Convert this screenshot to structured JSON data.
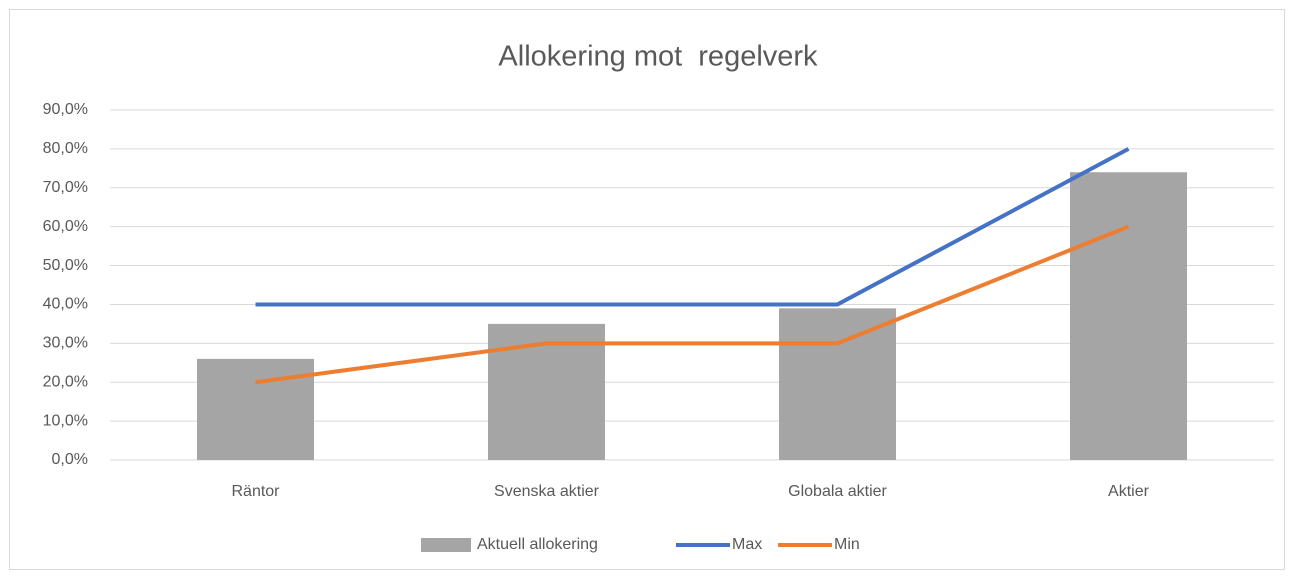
{
  "chart_data": {
    "type": "bar",
    "title": "Allokering mot  regelverk",
    "categories": [
      "Räntor",
      "Svenska aktier",
      "Globala aktier",
      "Aktier"
    ],
    "series": [
      {
        "name": "Aktuell allokering",
        "type": "bar",
        "color": "#a5a5a5",
        "values": [
          26,
          35,
          39,
          74
        ]
      },
      {
        "name": "Max",
        "type": "line",
        "color": "#4472c4",
        "values": [
          40,
          40,
          40,
          80
        ]
      },
      {
        "name": "Min",
        "type": "line",
        "color": "#ed7d31",
        "values": [
          20,
          30,
          30,
          60
        ]
      }
    ],
    "ylim": [
      0,
      90
    ],
    "yticks": [
      {
        "value": 0,
        "label": "0,0%"
      },
      {
        "value": 10,
        "label": "10,0%"
      },
      {
        "value": 20,
        "label": "20,0%"
      },
      {
        "value": 30,
        "label": "30,0%"
      },
      {
        "value": 40,
        "label": "40,0%"
      },
      {
        "value": 50,
        "label": "50,0%"
      },
      {
        "value": 60,
        "label": "60,0%"
      },
      {
        "value": 70,
        "label": "70,0%"
      },
      {
        "value": 80,
        "label": "80,0%"
      },
      {
        "value": 90,
        "label": "90,0%"
      }
    ],
    "grid": true,
    "legend": "bottom"
  }
}
